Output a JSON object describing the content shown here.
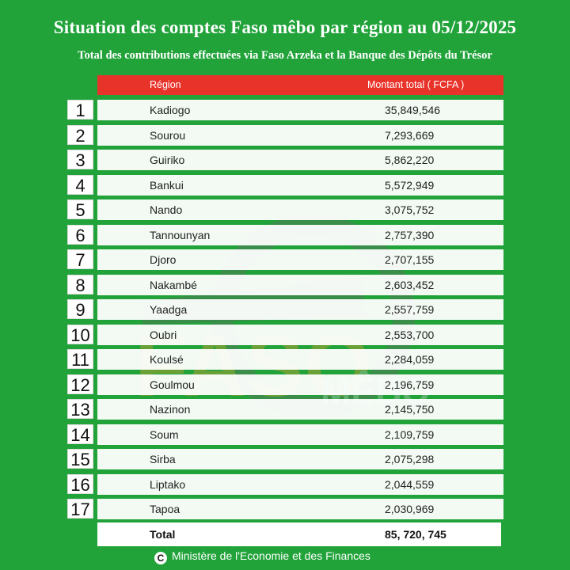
{
  "header": {
    "title": "Situation des comptes Faso mêbo par région au 05/12/2025",
    "subtitle": "Total des contributions effectuées via Faso Arzeka et la Banque des Dépôts du Trésor"
  },
  "table": {
    "columns": {
      "region": "Région",
      "amount": "Montant total ( FCFA )"
    },
    "rows": [
      {
        "rank": "1",
        "region": "Kadiogo",
        "amount": "35,849,546"
      },
      {
        "rank": "2",
        "region": "Sourou",
        "amount": "7,293,669"
      },
      {
        "rank": "3",
        "region": "Guiriko",
        "amount": "5,862,220"
      },
      {
        "rank": "4",
        "region": "Bankui",
        "amount": "5,572,949"
      },
      {
        "rank": "5",
        "region": "Nando",
        "amount": "3,075,752"
      },
      {
        "rank": "6",
        "region": "Tannounyan",
        "amount": "2,757,390"
      },
      {
        "rank": "7",
        "region": "Djoro",
        "amount": "2,707,155"
      },
      {
        "rank": "8",
        "region": "Nakambé",
        "amount": "2,603,452"
      },
      {
        "rank": "9",
        "region": "Yaadga",
        "amount": "2,557,759"
      },
      {
        "rank": "10",
        "region": "Oubri",
        "amount": "2,553,700"
      },
      {
        "rank": "11",
        "region": "Koulsé",
        "amount": "2,284,059"
      },
      {
        "rank": "12",
        "region": "Goulmou",
        "amount": "2,196,759"
      },
      {
        "rank": "13",
        "region": "Nazinon",
        "amount": "2,145,750"
      },
      {
        "rank": "14",
        "region": "Soum",
        "amount": "2,109,759"
      },
      {
        "rank": "15",
        "region": "Sirba",
        "amount": "2,075,298"
      },
      {
        "rank": "16",
        "region": "Liptako",
        "amount": "2,044,559"
      },
      {
        "rank": "17",
        "region": "Tapoa",
        "amount": "2,030,969"
      }
    ],
    "total": {
      "label": "Total",
      "amount": "85, 720, 745"
    }
  },
  "footer": {
    "copyright_symbol": "C",
    "text": "Ministère de l'Economie et des Finances"
  },
  "watermark": {
    "text_faso": "FASO",
    "text_mebo": "MÊBO"
  },
  "colors": {
    "background": "#21a33a",
    "header_row": "#e8332b",
    "row": "#ffffff"
  }
}
